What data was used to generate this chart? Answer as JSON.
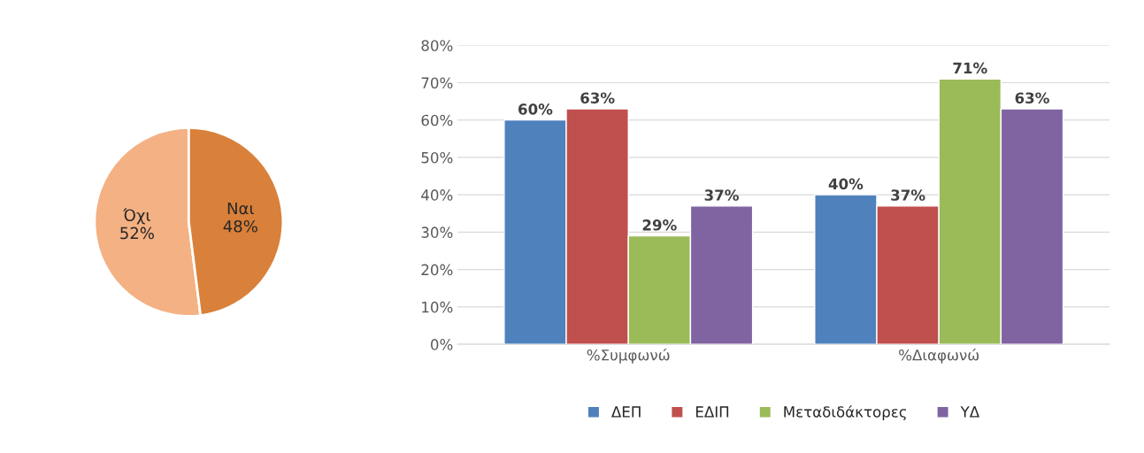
{
  "chart_data": [
    {
      "type": "pie",
      "categories": [
        "Όχι",
        "Ναι"
      ],
      "values": [
        52,
        48
      ],
      "colors": [
        "#f4b183",
        "#d9803a"
      ],
      "value_labels": [
        "52%",
        "48%"
      ]
    },
    {
      "type": "bar",
      "categories": [
        "%Συμφωνώ",
        "%Διαφωνώ"
      ],
      "series": [
        {
          "name": "ΔΕΠ",
          "color": "#4f81bd",
          "values": [
            60,
            40
          ],
          "value_labels": [
            "60%",
            "40%"
          ]
        },
        {
          "name": "ΕΔΙΠ",
          "color": "#c0504d",
          "values": [
            63,
            37
          ],
          "value_labels": [
            "63%",
            "37%"
          ]
        },
        {
          "name": "Μεταδιδάκτορες",
          "color": "#9bbb59",
          "values": [
            29,
            71
          ],
          "value_labels": [
            "29%",
            "71%"
          ]
        },
        {
          "name": "ΥΔ",
          "color": "#8064a2",
          "values": [
            37,
            63
          ],
          "value_labels": [
            "37%",
            "63%"
          ]
        }
      ],
      "ylim": [
        0,
        80
      ],
      "yticks": [
        {
          "value": 0,
          "label": "0%"
        },
        {
          "value": 10,
          "label": "10%"
        },
        {
          "value": 20,
          "label": "20%"
        },
        {
          "value": 30,
          "label": "30%"
        },
        {
          "value": 40,
          "label": "40%"
        },
        {
          "value": 50,
          "label": "50%"
        },
        {
          "value": 60,
          "label": "60%"
        },
        {
          "value": 70,
          "label": "70%"
        },
        {
          "value": 80,
          "label": "80%"
        }
      ],
      "grid": "y",
      "legend": "bottom"
    }
  ]
}
